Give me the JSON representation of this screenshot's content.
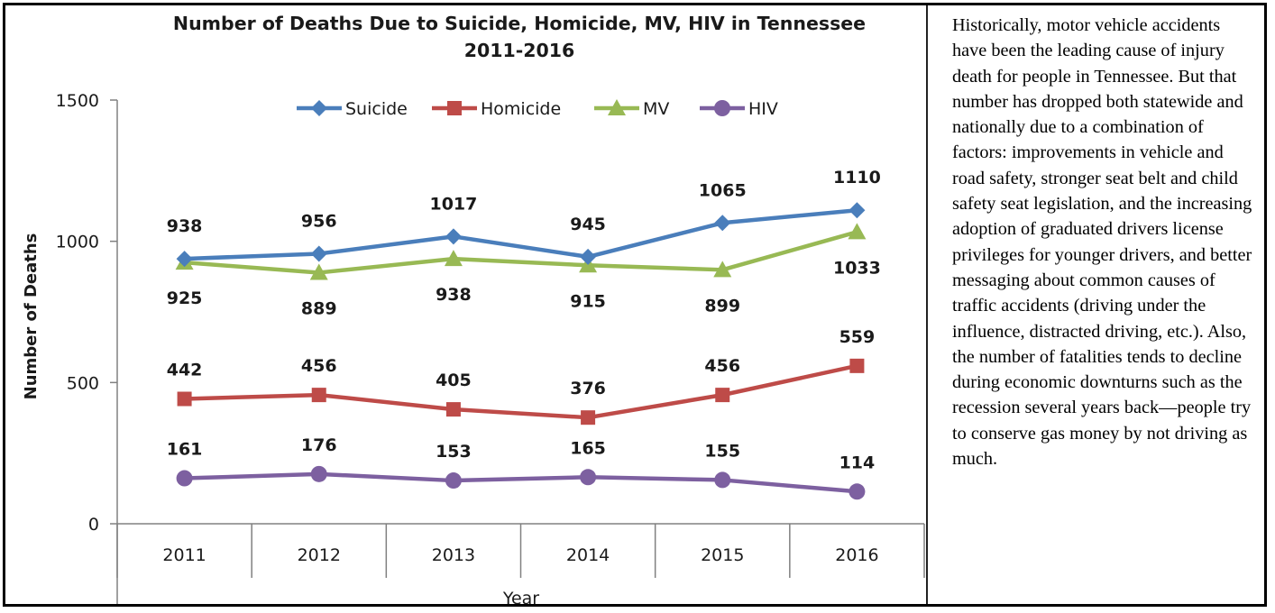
{
  "chart_data": {
    "type": "line",
    "title": "Number of Deaths Due to Suicide, Homicide, MV, HIV in Tennessee",
    "subtitle": "2011-2016",
    "xlabel": "Year",
    "ylabel": "Number of Deaths",
    "ylim": [
      0,
      1500
    ],
    "yticks": [
      "0",
      "500",
      "1000",
      "1500"
    ],
    "categories": [
      "2011",
      "2012",
      "2013",
      "2014",
      "2015",
      "2016"
    ],
    "legend_position": "top",
    "grid": false,
    "series": [
      {
        "name": "Suicide",
        "color": "#4A7EBB",
        "marker": "diamond",
        "values": [
          938,
          956,
          1017,
          945,
          1065,
          1110
        ]
      },
      {
        "name": "Homicide",
        "color": "#BE4B48",
        "marker": "square",
        "values": [
          442,
          456,
          405,
          376,
          456,
          559
        ]
      },
      {
        "name": "MV",
        "color": "#98B954",
        "marker": "triangle",
        "values": [
          925,
          889,
          938,
          915,
          899,
          1033
        ]
      },
      {
        "name": "HIV",
        "color": "#7D60A0",
        "marker": "circle",
        "values": [
          161,
          176,
          153,
          165,
          155,
          114
        ]
      }
    ]
  },
  "side_text": "Historically, motor vehicle accidents have been the leading cause of injury death for people in Tennessee. But that number has dropped both statewide and nationally due to a combination of factors: improvements in vehicle and road safety, stronger seat belt and child safety seat legislation, and the increasing adoption of graduated drivers license privileges for younger drivers, and better messaging about common causes of traffic accidents (driving under the influence, distracted driving, etc.). Also, the number of fatalities tends to decline during economic downturns such as the recession several years back—people try to conserve gas money by not driving as much."
}
